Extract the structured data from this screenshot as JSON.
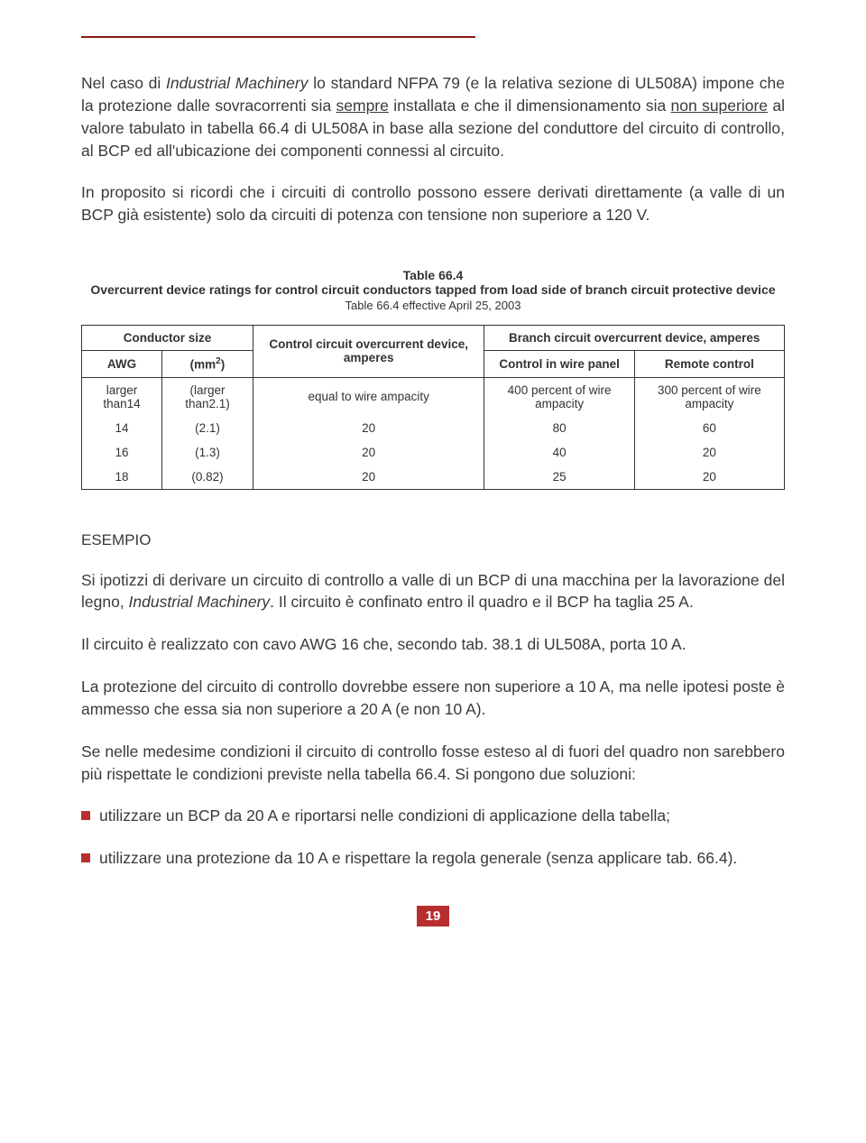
{
  "colors": {
    "rule": "#871b1b",
    "bullet": "#b82e2e",
    "pagenum_bg": "#b82e2e",
    "pagenum_fg": "#ffffff",
    "text": "#3a3a3a",
    "table_border": "#333333"
  },
  "paragraphs": {
    "p1_a": "Nel caso di ",
    "p1_b": "Industrial Machinery",
    "p1_c": " lo standard NFPA 79 (e la relativa sezione di UL508A) impone che la protezione dalle sovracorrenti sia ",
    "p1_d": "sempre",
    "p1_e": " installata e che il dimensionamento sia ",
    "p1_f": "non superiore",
    "p1_g": " al valore tabulato in tabella 66.4 di UL508A in base alla sezione del conduttore del circuito di controllo, al BCP ed all'ubicazione dei componenti connessi al circuito.",
    "p2": "In proposito si ricordi che i circuiti di controllo possono essere derivati direttamente (a valle di un BCP già esistente) solo da circuiti di potenza con tensione non superiore a 120 V."
  },
  "table": {
    "caption_line1": "Table 66.4",
    "caption_line2": "Overcurrent device ratings for control circuit conductors tapped from load side of branch circuit protective device",
    "caption_line3": "Table 66.4 effective April 25, 2003",
    "head": {
      "conductor_size": "Conductor size",
      "control": "Control circuit overcurrent device, amperes",
      "branch": "Branch circuit overcurrent device, amperes",
      "awg": "AWG",
      "mm2_a": "(mm",
      "mm2_b": "2",
      "mm2_c": ")",
      "panel": "Control in wire panel",
      "remote": "Remote control"
    },
    "rows": [
      {
        "awg": "larger than14",
        "mm2": "(larger than2.1)",
        "ctrl": "equal to wire ampacity",
        "panel": "400 percent of wire ampacity",
        "remote": "300 percent of wire ampacity"
      },
      {
        "awg": "14",
        "mm2": "(2.1)",
        "ctrl": "20",
        "panel": "80",
        "remote": "60"
      },
      {
        "awg": "16",
        "mm2": "(1.3)",
        "ctrl": "20",
        "panel": "40",
        "remote": "20"
      },
      {
        "awg": "18",
        "mm2": "(0.82)",
        "ctrl": "20",
        "panel": "25",
        "remote": "20"
      }
    ]
  },
  "esempio_heading": "ESEMPIO",
  "esempio": {
    "p1_a": "Si ipotizzi di derivare un circuito di controllo a valle di un BCP di una macchina per la lavorazione del legno, ",
    "p1_b": "Industrial Machinery",
    "p1_c": ". Il circuito è confinato entro il quadro e il BCP ha taglia 25 A.",
    "p2": "Il circuito è realizzato con cavo AWG 16 che, secondo tab. 38.1 di UL508A, porta 10 A.",
    "p3": "La protezione del circuito di controllo dovrebbe essere non superiore a 10 A, ma nelle ipotesi poste è ammesso che essa sia non superiore a 20 A (e non 10 A).",
    "p4": "Se nelle medesime condizioni il circuito di controllo fosse esteso al di fuori del quadro non sarebbero più rispettate le condizioni previste nella tabella 66.4. Si pongono due soluzioni:"
  },
  "bullets": {
    "b1": "utilizzare un BCP da 20 A e riportarsi nelle condizioni di applicazione della tabella;",
    "b2": "utilizzare una protezione da 10 A e rispettare la regola generale (senza applicare tab. 66.4)."
  },
  "page_number": "19"
}
